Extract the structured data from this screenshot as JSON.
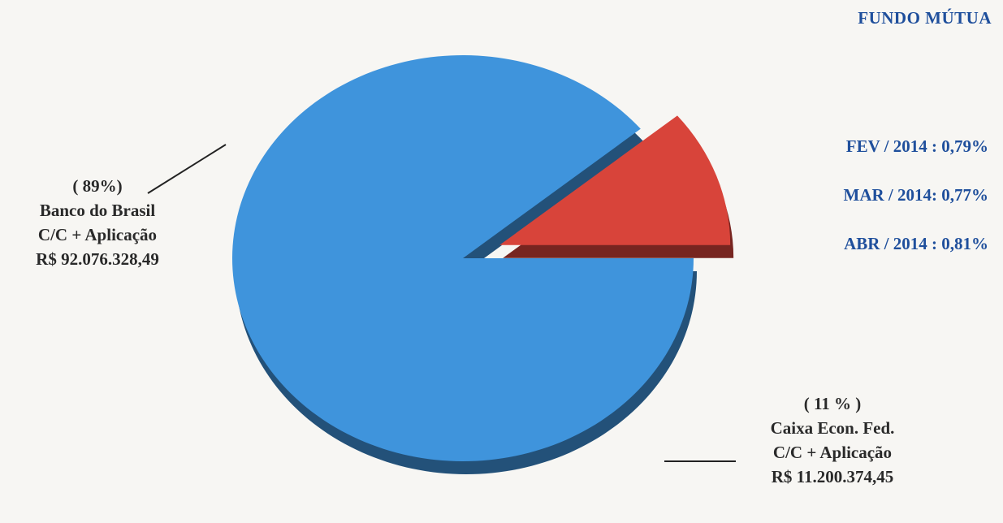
{
  "chart_data": {
    "type": "pie",
    "slices": [
      {
        "label": "Banco do Brasil",
        "percent": 89,
        "percent_text": "( 89%)",
        "line2": "C/C + Aplicação",
        "amount": "R$ 92.076.328,49",
        "value": 92076328.49,
        "color": "#3f94dc"
      },
      {
        "label": "Caixa Econ. Fed.",
        "percent": 11,
        "percent_text": "( 11 % )",
        "line2": "C/C +  Aplicação",
        "amount": "R$ 11.200.374,45",
        "value": 11200374.45,
        "color": "#d8443a",
        "exploded": true
      }
    ]
  },
  "header": {
    "title": "FUNDO MÚTUA"
  },
  "rates": [
    "FEV / 2014 : 0,79%",
    "MAR / 2014: 0,77%",
    "ABR / 2014 : 0,81%"
  ]
}
